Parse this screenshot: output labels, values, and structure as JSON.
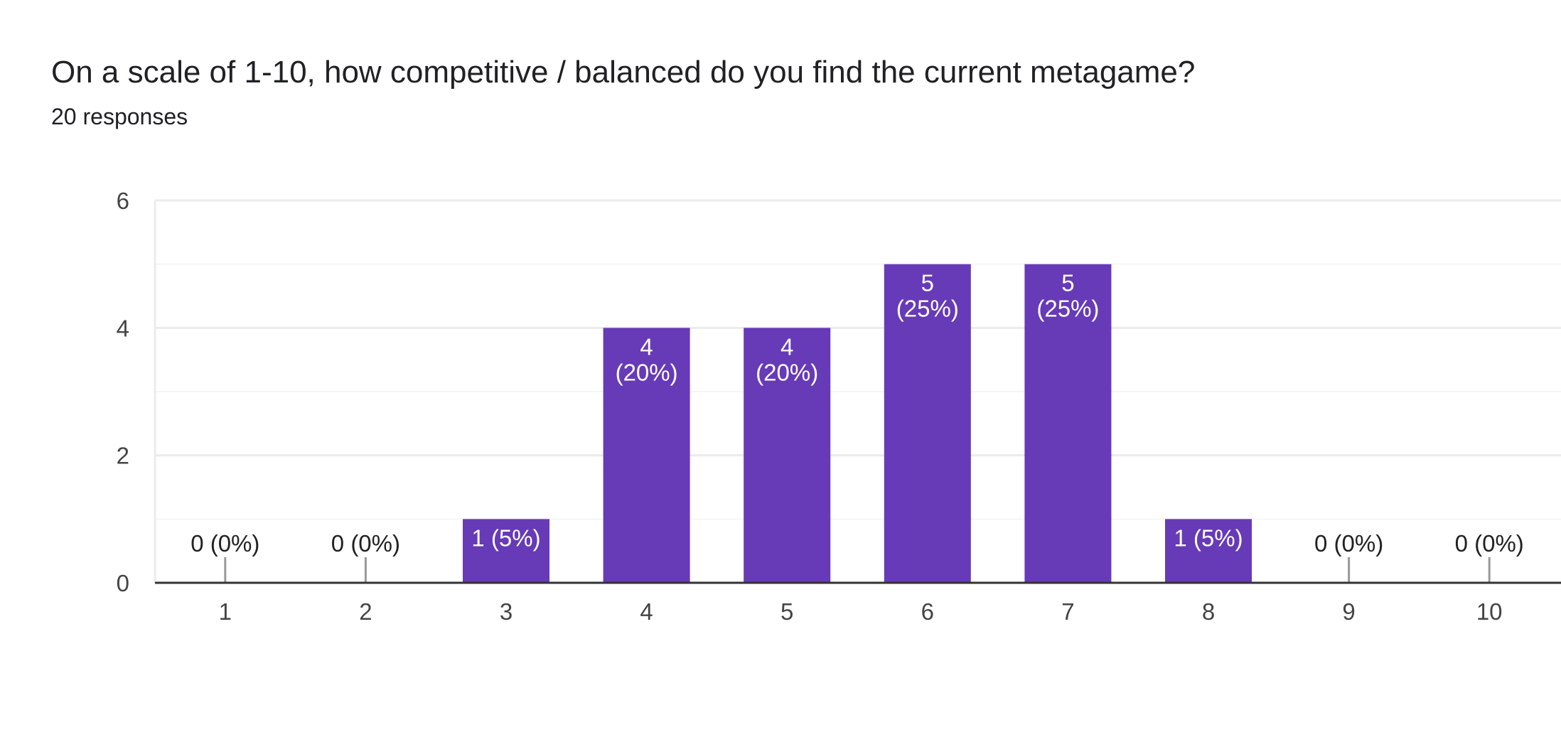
{
  "title": "On a scale of 1-10, how competitive / balanced do you find the current metagame?",
  "responses": "20 responses",
  "colors": {
    "bar": "#673ab7",
    "bar_label_inside": "#ffffff",
    "bar_label_outside": "#222222",
    "grid": "#ebebeb",
    "grid_minor": "#f5f5f5",
    "axis": "#333333",
    "zero_tick": "#999999"
  },
  "chart_data": {
    "type": "bar",
    "categories": [
      "1",
      "2",
      "3",
      "4",
      "5",
      "6",
      "7",
      "8",
      "9",
      "10"
    ],
    "values": [
      0,
      0,
      1,
      4,
      4,
      5,
      5,
      1,
      0,
      0
    ],
    "labels": [
      [
        "0 (0%)"
      ],
      [
        "0 (0%)"
      ],
      [
        "1 (5%)"
      ],
      [
        "4",
        "(20%)"
      ],
      [
        "4",
        "(20%)"
      ],
      [
        "5",
        "(25%)"
      ],
      [
        "5",
        "(25%)"
      ],
      [
        "1 (5%)"
      ],
      [
        "0 (0%)"
      ],
      [
        "0 (0%)"
      ]
    ],
    "title": "On a scale of 1-10, how competitive / balanced do you find the current metagame?",
    "xlabel": "",
    "ylabel": "",
    "ylim": [
      0,
      6
    ],
    "yticks": [
      0,
      2,
      4,
      6
    ],
    "grid": true,
    "legend": "none"
  }
}
